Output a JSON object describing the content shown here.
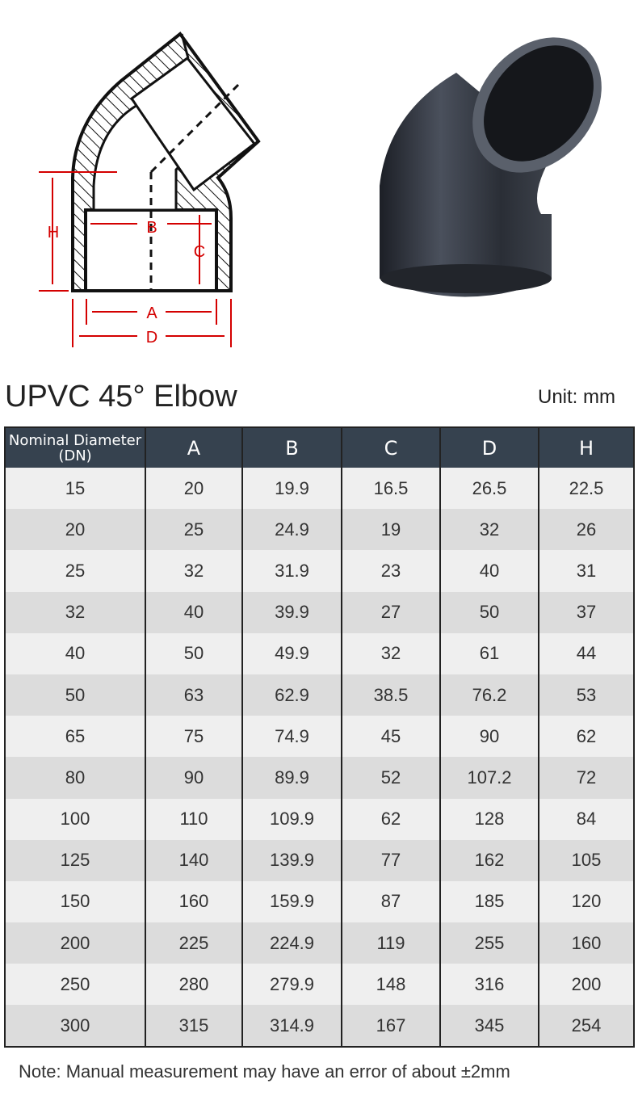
{
  "diagram": {
    "labels": {
      "H": "H",
      "B": "B",
      "C": "C",
      "A": "A",
      "D": "D"
    },
    "accent": "#d40000"
  },
  "title": "UPVC 45° Elbow",
  "unit": "Unit: mm",
  "table": {
    "headers": [
      "Nominal Diameter (DN)",
      "A",
      "B",
      "C",
      "D",
      "H"
    ],
    "rows": [
      [
        "15",
        "20",
        "19.9",
        "16.5",
        "26.5",
        "22.5"
      ],
      [
        "20",
        "25",
        "24.9",
        "19",
        "32",
        "26"
      ],
      [
        "25",
        "32",
        "31.9",
        "23",
        "40",
        "31"
      ],
      [
        "32",
        "40",
        "39.9",
        "27",
        "50",
        "37"
      ],
      [
        "40",
        "50",
        "49.9",
        "32",
        "61",
        "44"
      ],
      [
        "50",
        "63",
        "62.9",
        "38.5",
        "76.2",
        "53"
      ],
      [
        "65",
        "75",
        "74.9",
        "45",
        "90",
        "62"
      ],
      [
        "80",
        "90",
        "89.9",
        "52",
        "107.2",
        "72"
      ],
      [
        "100",
        "110",
        "109.9",
        "62",
        "128",
        "84"
      ],
      [
        "125",
        "140",
        "139.9",
        "77",
        "162",
        "105"
      ],
      [
        "150",
        "160",
        "159.9",
        "87",
        "185",
        "120"
      ],
      [
        "200",
        "225",
        "224.9",
        "119",
        "255",
        "160"
      ],
      [
        "250",
        "280",
        "279.9",
        "148",
        "316",
        "200"
      ],
      [
        "300",
        "315",
        "314.9",
        "167",
        "345",
        "254"
      ]
    ]
  },
  "note": "Note: Manual measurement may have an error of about ±2mm"
}
